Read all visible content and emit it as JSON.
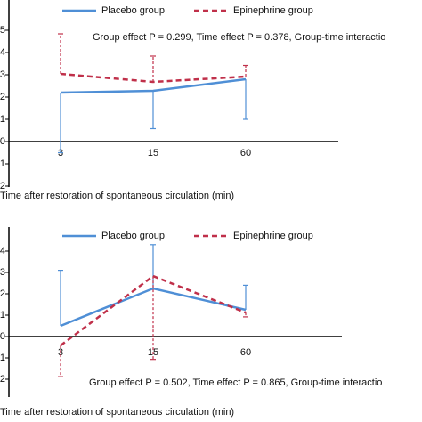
{
  "chart_data": [
    {
      "type": "line",
      "categories": [
        "3",
        "15",
        "60"
      ],
      "xlabel": "Time after restoration of spontaneous circulation (min)",
      "annotation": "Group effect P = 0.299, Time effect P = 0.378, Group-time interactio",
      "ylim": [
        -2,
        5
      ],
      "yticks": [
        -2,
        -1,
        0,
        1,
        2,
        3,
        4,
        5
      ],
      "series": [
        {
          "name": "Placebo group",
          "color": "#4f8fd6",
          "dash": false,
          "error_side": "down",
          "values": [
            2.2,
            2.28,
            2.8
          ],
          "errors": [
            2.7,
            1.7,
            1.8
          ]
        },
        {
          "name": "Epinephrine group",
          "color": "#c0304a",
          "dash": true,
          "error_side": "up",
          "values": [
            3.04,
            2.68,
            2.92
          ],
          "errors": [
            1.8,
            1.16,
            0.5
          ]
        }
      ]
    },
    {
      "type": "line",
      "categories": [
        "3",
        "15",
        "60"
      ],
      "xlabel": "Time after restoration of spontaneous circulation (min)",
      "annotation": "Group effect P = 0.502, Time effect P = 0.865, Group-time interactio",
      "ylim": [
        -2,
        4
      ],
      "yticks": [
        -2,
        -1,
        0,
        1,
        2,
        3,
        4
      ],
      "series": [
        {
          "name": "Placebo group",
          "color": "#4f8fd6",
          "dash": false,
          "error_side": "up",
          "values": [
            0.5,
            2.25,
            1.25
          ],
          "errors": [
            2.6,
            2.05,
            1.15
          ]
        },
        {
          "name": "Epinephrine group",
          "color": "#c0304a",
          "dash": true,
          "error_side": "down",
          "values": [
            -0.42,
            2.83,
            1.12
          ],
          "errors": [
            1.46,
            3.9,
            0.2
          ]
        }
      ]
    }
  ]
}
